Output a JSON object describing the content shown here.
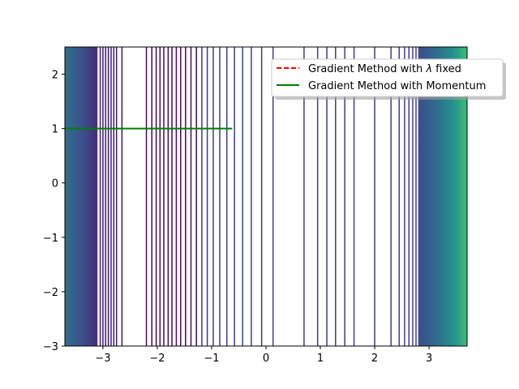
{
  "chart_data": {
    "type": "line",
    "title": "",
    "xlabel": "",
    "ylabel": "",
    "xlim": [
      -3.7,
      3.7
    ],
    "ylim": [
      -3,
      2.5
    ],
    "x_ticks": [
      -3,
      -2,
      -1,
      0,
      1,
      2,
      3
    ],
    "y_ticks": [
      -3,
      -2,
      -1,
      0,
      1,
      2
    ],
    "x_tick_labels": [
      "−3",
      "−2",
      "−1",
      "0",
      "1",
      "2",
      "3"
    ],
    "y_tick_labels": [
      "−3",
      "−2",
      "−1",
      "0",
      "1",
      "2"
    ],
    "grid": false,
    "legend_position": "upper-right",
    "background": {
      "kind": "filled-contour-edges",
      "colormap": "viridis",
      "left_fill_until": -3.1,
      "right_fill_from": 2.8
    },
    "contour_lines": [
      {
        "x": -3.05,
        "color": "#3b1a6b"
      },
      {
        "x": -3.0,
        "color": "#3b1a6b"
      },
      {
        "x": -2.95,
        "color": "#3b1a6b"
      },
      {
        "x": -2.9,
        "color": "#3b1a6b"
      },
      {
        "x": -2.85,
        "color": "#3b1a6b"
      },
      {
        "x": -2.8,
        "color": "#3b1a6b"
      },
      {
        "x": -2.75,
        "color": "#3b1a6b"
      },
      {
        "x": -2.65,
        "color": "#3b1a6b"
      },
      {
        "x": -2.2,
        "color": "#46085c"
      },
      {
        "x": -2.1,
        "color": "#46085c"
      },
      {
        "x": -2.02,
        "color": "#46085c"
      },
      {
        "x": -1.95,
        "color": "#46085c"
      },
      {
        "x": -1.88,
        "color": "#46085c"
      },
      {
        "x": -1.8,
        "color": "#46085c"
      },
      {
        "x": -1.73,
        "color": "#46085c"
      },
      {
        "x": -1.65,
        "color": "#46085c"
      },
      {
        "x": -1.57,
        "color": "#46085c"
      },
      {
        "x": -1.48,
        "color": "#46085c"
      },
      {
        "x": -1.38,
        "color": "#46085c"
      },
      {
        "x": -1.28,
        "color": "#46085c"
      },
      {
        "x": -1.18,
        "color": "#3a3f8b"
      },
      {
        "x": -1.08,
        "color": "#3a3f8b"
      },
      {
        "x": -0.97,
        "color": "#3a3f8b"
      },
      {
        "x": -0.85,
        "color": "#3a3f8b"
      },
      {
        "x": -0.72,
        "color": "#3a3f8b"
      },
      {
        "x": -0.58,
        "color": "#3a3f8b"
      },
      {
        "x": -0.43,
        "color": "#3a3f8b"
      },
      {
        "x": -0.27,
        "color": "#3a3f8b"
      },
      {
        "x": -0.08,
        "color": "#3a3f8b"
      },
      {
        "x": 0.13,
        "color": "#3a3f8b"
      },
      {
        "x": 0.7,
        "color": "#3a3f8b"
      },
      {
        "x": 0.95,
        "color": "#3a3f8b"
      },
      {
        "x": 1.12,
        "color": "#3a3f8b"
      },
      {
        "x": 1.28,
        "color": "#3a3f8b"
      },
      {
        "x": 1.45,
        "color": "#3a3f8b"
      },
      {
        "x": 1.62,
        "color": "#3a3f8b"
      },
      {
        "x": 2.0,
        "color": "#3a3f8b"
      },
      {
        "x": 2.3,
        "color": "#3a3f8b"
      },
      {
        "x": 2.45,
        "color": "#3a3f8b"
      },
      {
        "x": 2.55,
        "color": "#3a3f8b"
      },
      {
        "x": 2.63,
        "color": "#3a3f8b"
      },
      {
        "x": 2.7,
        "color": "#3a3f8b"
      },
      {
        "x": 2.76,
        "color": "#3a3f8b"
      }
    ],
    "series": [
      {
        "name": "Gradient Method with $\\lambda$ fixed",
        "color": "#ff0000",
        "style": "dashed",
        "x": [],
        "y": []
      },
      {
        "name": "Gradient Method with Momentum",
        "color": "#008000",
        "style": "solid",
        "x": [
          -3.7,
          -0.62
        ],
        "y": [
          1.0,
          1.0
        ]
      }
    ],
    "legend": [
      {
        "label_pre": "Gradient Method with ",
        "label_symbol": "λ",
        "label_post": " fixed",
        "color": "#ff0000",
        "style": "dashed"
      },
      {
        "label_pre": "Gradient Method with Momentum",
        "label_symbol": "",
        "label_post": "",
        "color": "#008000",
        "style": "solid"
      }
    ]
  }
}
